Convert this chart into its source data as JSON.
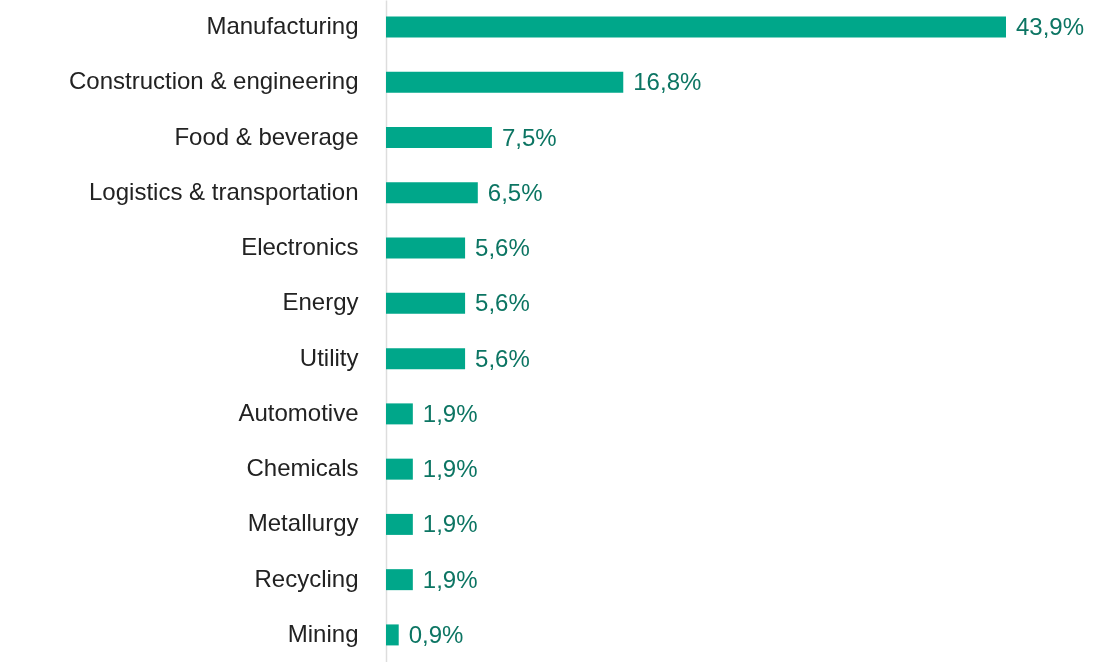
{
  "chart_data": {
    "type": "bar",
    "orientation": "horizontal",
    "color": "#00a78a",
    "categories": [
      "Manufacturing",
      "Construction & engineering",
      "Food & beverage",
      "Logistics & transportation",
      "Electronics",
      "Energy",
      "Utility",
      "Automotive",
      "Chemicals",
      "Metallurgy",
      "Recycling",
      "Mining"
    ],
    "values": [
      43.9,
      16.8,
      7.5,
      6.5,
      5.6,
      5.6,
      5.6,
      1.9,
      1.9,
      1.9,
      1.9,
      0.9
    ],
    "value_labels": [
      "43,9%",
      "16,8%",
      "7,5%",
      "6,5%",
      "5,6%",
      "5,6%",
      "5,6%",
      "1,9%",
      "1,9%",
      "1,9%",
      "1,9%",
      "0,9%"
    ]
  }
}
